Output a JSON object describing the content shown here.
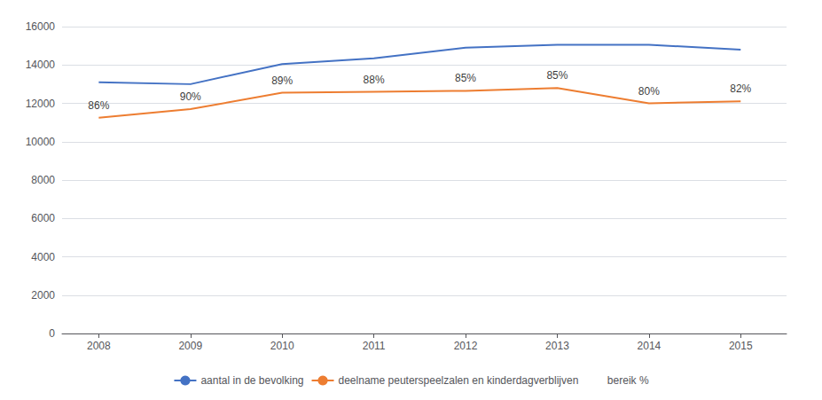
{
  "chart_data": {
    "type": "line",
    "x": [
      2008,
      2009,
      2010,
      2011,
      2012,
      2013,
      2014,
      2015
    ],
    "series": [
      {
        "name": "aantal in de bevolking",
        "color": "#4472C4",
        "values": [
          13100,
          13000,
          14050,
          14350,
          14900,
          15050,
          15050,
          14800
        ]
      },
      {
        "name": "deelname peuterspeelzalen en kinderdagverblijven",
        "color": "#ED7D31",
        "values": [
          11250,
          11700,
          12550,
          12600,
          12650,
          12800,
          12000,
          12100
        ]
      }
    ],
    "annotations": {
      "name": "bereik %",
      "points": [
        {
          "x": 2008,
          "y": 11250,
          "text": "86%"
        },
        {
          "x": 2009,
          "y": 11700,
          "text": "90%"
        },
        {
          "x": 2010,
          "y": 12550,
          "text": "89%"
        },
        {
          "x": 2011,
          "y": 12600,
          "text": "88%"
        },
        {
          "x": 2012,
          "y": 12650,
          "text": "85%"
        },
        {
          "x": 2013,
          "y": 12800,
          "text": "85%"
        },
        {
          "x": 2014,
          "y": 12000,
          "text": "80%"
        },
        {
          "x": 2015,
          "y": 12100,
          "text": "82%"
        }
      ]
    },
    "xlim": [
      2007.6,
      2015.5
    ],
    "xticks": [
      2008,
      2009,
      2010,
      2011,
      2012,
      2013,
      2014,
      2015
    ],
    "ylim": [
      0,
      16000
    ],
    "yticks": [
      0,
      2000,
      4000,
      6000,
      8000,
      10000,
      12000,
      14000,
      16000
    ],
    "grid": true,
    "legend": "bottom"
  }
}
